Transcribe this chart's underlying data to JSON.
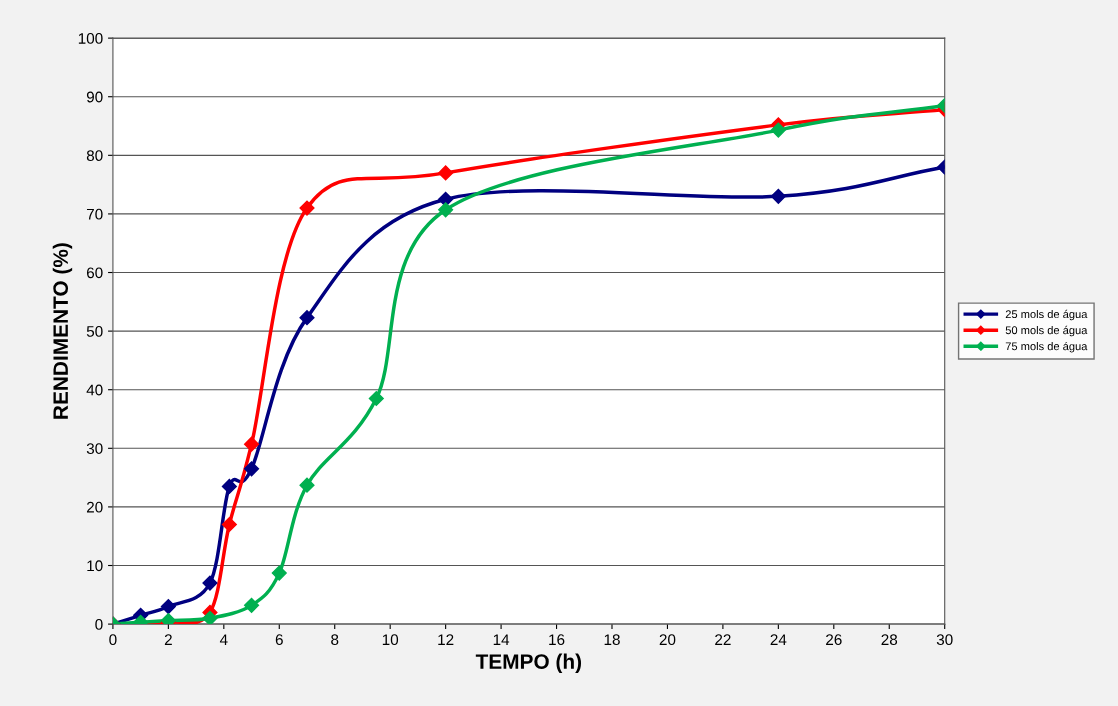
{
  "chart_data": {
    "type": "line",
    "xlabel": "TEMPO (h)",
    "ylabel": "RENDIMENTO (%)",
    "xlim": [
      0,
      30
    ],
    "ylim": [
      0,
      100
    ],
    "xticks": [
      0,
      2,
      4,
      6,
      8,
      10,
      12,
      14,
      16,
      18,
      20,
      22,
      24,
      26,
      28,
      30
    ],
    "yticks": [
      0,
      10,
      20,
      30,
      40,
      50,
      60,
      70,
      80,
      90,
      100
    ],
    "grid": "y",
    "legend": "right",
    "marker": "diamond",
    "line_style": "solid",
    "series": [
      {
        "name": "25 mols de água",
        "color": "#000080",
        "x": [
          0,
          1,
          2,
          3.5,
          4.2,
          5,
          7,
          12,
          24,
          30
        ],
        "values": [
          0,
          1.5,
          3,
          7,
          23.5,
          26.5,
          52.3,
          72.5,
          73,
          78
        ]
      },
      {
        "name": "50 mols de água",
        "color": "#ff0000",
        "x": [
          0,
          1,
          2,
          3.5,
          4.2,
          5,
          7,
          12,
          24,
          30
        ],
        "values": [
          0,
          null,
          0.3,
          2,
          17,
          30.7,
          71,
          77,
          85.2,
          87.8
        ]
      },
      {
        "name": "75 mols de água",
        "color": "#00b050",
        "x": [
          0,
          1,
          2,
          3.5,
          5,
          6,
          7,
          9.5,
          12,
          24,
          30
        ],
        "values": [
          0,
          0.3,
          0.6,
          1,
          3.2,
          8.7,
          23.7,
          38.5,
          70.7,
          84.3,
          88.5
        ]
      }
    ]
  }
}
